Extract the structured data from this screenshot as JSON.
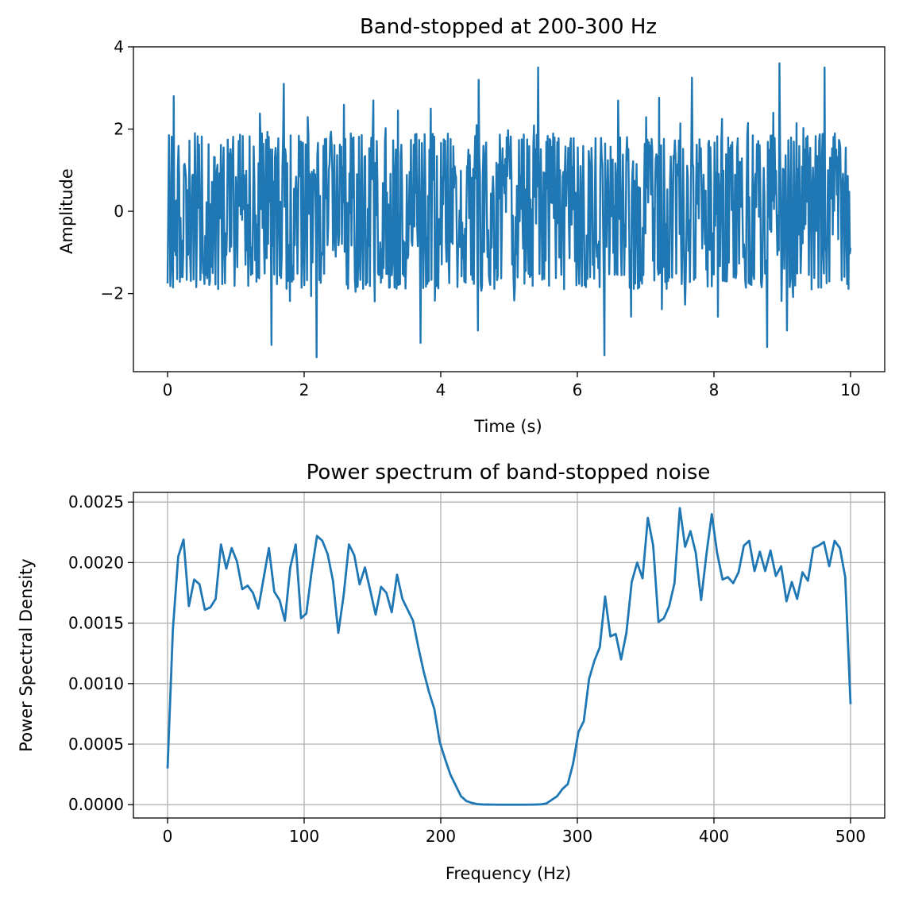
{
  "colors": {
    "line": "#1f77b4",
    "grid": "#b0b0b0",
    "axes": "#000000",
    "background": "#ffffff"
  },
  "chart_data": [
    {
      "type": "line",
      "title": "Band-stopped at 200-300 Hz",
      "xlabel": "Time (s)",
      "ylabel": "Amplitude",
      "xlim": [
        -0.5,
        10.5
      ],
      "ylim": [
        -3.9,
        4.0
      ],
      "xticks": [
        0,
        2,
        4,
        6,
        8,
        10
      ],
      "xtick_labels": [
        "0",
        "2",
        "4",
        "6",
        "8",
        "10"
      ],
      "yticks": [
        -2,
        0,
        2,
        4
      ],
      "ytick_labels": [
        "−2",
        "0",
        "2",
        "4"
      ],
      "grid": false,
      "series_description_note_free": true,
      "x_range": [
        0,
        10
      ],
      "samples": 1000,
      "envelope_typical": [
        -2.0,
        2.0
      ],
      "peaks": [
        {
          "x": 0.09,
          "y": 2.8
        },
        {
          "x": 1.7,
          "y": 3.1
        },
        {
          "x": 2.18,
          "y": -3.55
        },
        {
          "x": 3.7,
          "y": -3.2
        },
        {
          "x": 5.43,
          "y": 3.5
        },
        {
          "x": 6.4,
          "y": -3.5
        },
        {
          "x": 8.96,
          "y": 3.6
        },
        {
          "x": 9.62,
          "y": 3.5
        },
        {
          "x": 8.78,
          "y": -3.3
        },
        {
          "x": 1.52,
          "y": -3.25
        },
        {
          "x": 4.55,
          "y": 3.2
        },
        {
          "x": 7.68,
          "y": 3.25
        }
      ]
    },
    {
      "type": "line",
      "title": "Power spectrum of band-stopped noise",
      "xlabel": "Frequency (Hz)",
      "ylabel": "Power Spectral Density",
      "xlim": [
        -25,
        525
      ],
      "ylim": [
        -0.00011,
        0.00258
      ],
      "xticks": [
        0,
        100,
        200,
        300,
        400,
        500
      ],
      "xtick_labels": [
        "0",
        "100",
        "200",
        "300",
        "400",
        "500"
      ],
      "yticks": [
        0.0,
        0.0005,
        0.001,
        0.0015,
        0.002,
        0.0025
      ],
      "ytick_labels": [
        "0.0000",
        "0.0005",
        "0.0010",
        "0.0015",
        "0.0020",
        "0.0025"
      ],
      "grid": true,
      "x": [
        0,
        3.9,
        7.8,
        11.7,
        15.6,
        19.5,
        23.4,
        27.3,
        31.3,
        35.2,
        39.1,
        43.0,
        46.9,
        50.8,
        54.7,
        58.6,
        62.5,
        66.4,
        70.3,
        74.2,
        78.1,
        82.0,
        85.9,
        89.8,
        93.8,
        97.7,
        101.6,
        105.5,
        109.4,
        113.3,
        117.2,
        121.1,
        125.0,
        128.9,
        132.8,
        136.7,
        140.6,
        144.5,
        148.4,
        152.3,
        156.3,
        160.2,
        164.1,
        168.0,
        171.9,
        175.8,
        179.7,
        183.6,
        187.5,
        191.4,
        195.3,
        199.2,
        203.1,
        207.0,
        210.9,
        214.8,
        218.8,
        222.7,
        226.6,
        230.5,
        234.4,
        238.3,
        242.2,
        246.1,
        250.0,
        253.9,
        257.8,
        261.7,
        265.6,
        269.5,
        273.4,
        277.3,
        281.3,
        285.2,
        289.1,
        293.0,
        296.9,
        300.8,
        304.7,
        308.6,
        312.5,
        316.4,
        320.3,
        324.2,
        328.1,
        332.0,
        335.9,
        339.8,
        343.8,
        347.7,
        351.6,
        355.5,
        359.4,
        363.3,
        367.2,
        371.1,
        375.0,
        378.9,
        382.8,
        386.7,
        390.6,
        394.5,
        398.4,
        402.3,
        406.3,
        410.2,
        414.1,
        418.0,
        421.9,
        425.8,
        429.7,
        433.6,
        437.5,
        441.4,
        445.3,
        449.2,
        453.1,
        457.0,
        460.9,
        464.8,
        468.8,
        472.7,
        476.6,
        480.5,
        484.4,
        488.3,
        492.2,
        496.1,
        500.0
      ],
      "series": [
        {
          "values": [
            0.0003,
            0.00145,
            0.00205,
            0.00219,
            0.00164,
            0.00186,
            0.00182,
            0.00161,
            0.00163,
            0.0017,
            0.00215,
            0.00195,
            0.00212,
            0.00201,
            0.00178,
            0.00181,
            0.00175,
            0.00162,
            0.00187,
            0.00212,
            0.00176,
            0.00169,
            0.00152,
            0.00196,
            0.00215,
            0.00154,
            0.00158,
            0.00193,
            0.00222,
            0.00218,
            0.00207,
            0.00185,
            0.00142,
            0.00173,
            0.00215,
            0.00206,
            0.00182,
            0.00196,
            0.00177,
            0.00157,
            0.0018,
            0.00175,
            0.00159,
            0.0019,
            0.0017,
            0.00161,
            0.00152,
            0.0013,
            0.0011,
            0.00093,
            0.00079,
            0.00052,
            0.00038,
            0.00025,
            0.00016,
            7e-05,
            3e-05,
            1.5e-05,
            5e-06,
            2e-06,
            1e-06,
            5e-07,
            0.0,
            0.0,
            0.0,
            0.0,
            0.0,
            0.0,
            5e-07,
            1e-06,
            3e-06,
            1e-05,
            4e-05,
            7e-05,
            0.00013,
            0.00017,
            0.00034,
            0.0006,
            0.00069,
            0.00104,
            0.00119,
            0.0013,
            0.00172,
            0.00139,
            0.00141,
            0.0012,
            0.00142,
            0.00184,
            0.002,
            0.00187,
            0.00237,
            0.00214,
            0.00151,
            0.00154,
            0.00164,
            0.00183,
            0.00245,
            0.00213,
            0.00226,
            0.00208,
            0.00169,
            0.00207,
            0.0024,
            0.00208,
            0.00186,
            0.00188,
            0.00183,
            0.00192,
            0.00214,
            0.00218,
            0.00193,
            0.00209,
            0.00193,
            0.0021,
            0.00189,
            0.00197,
            0.00168,
            0.00184,
            0.0017,
            0.00192,
            0.00185,
            0.00212,
            0.00214,
            0.00217,
            0.00197,
            0.00218,
            0.00212,
            0.00188,
            0.00083
          ]
        }
      ]
    }
  ]
}
